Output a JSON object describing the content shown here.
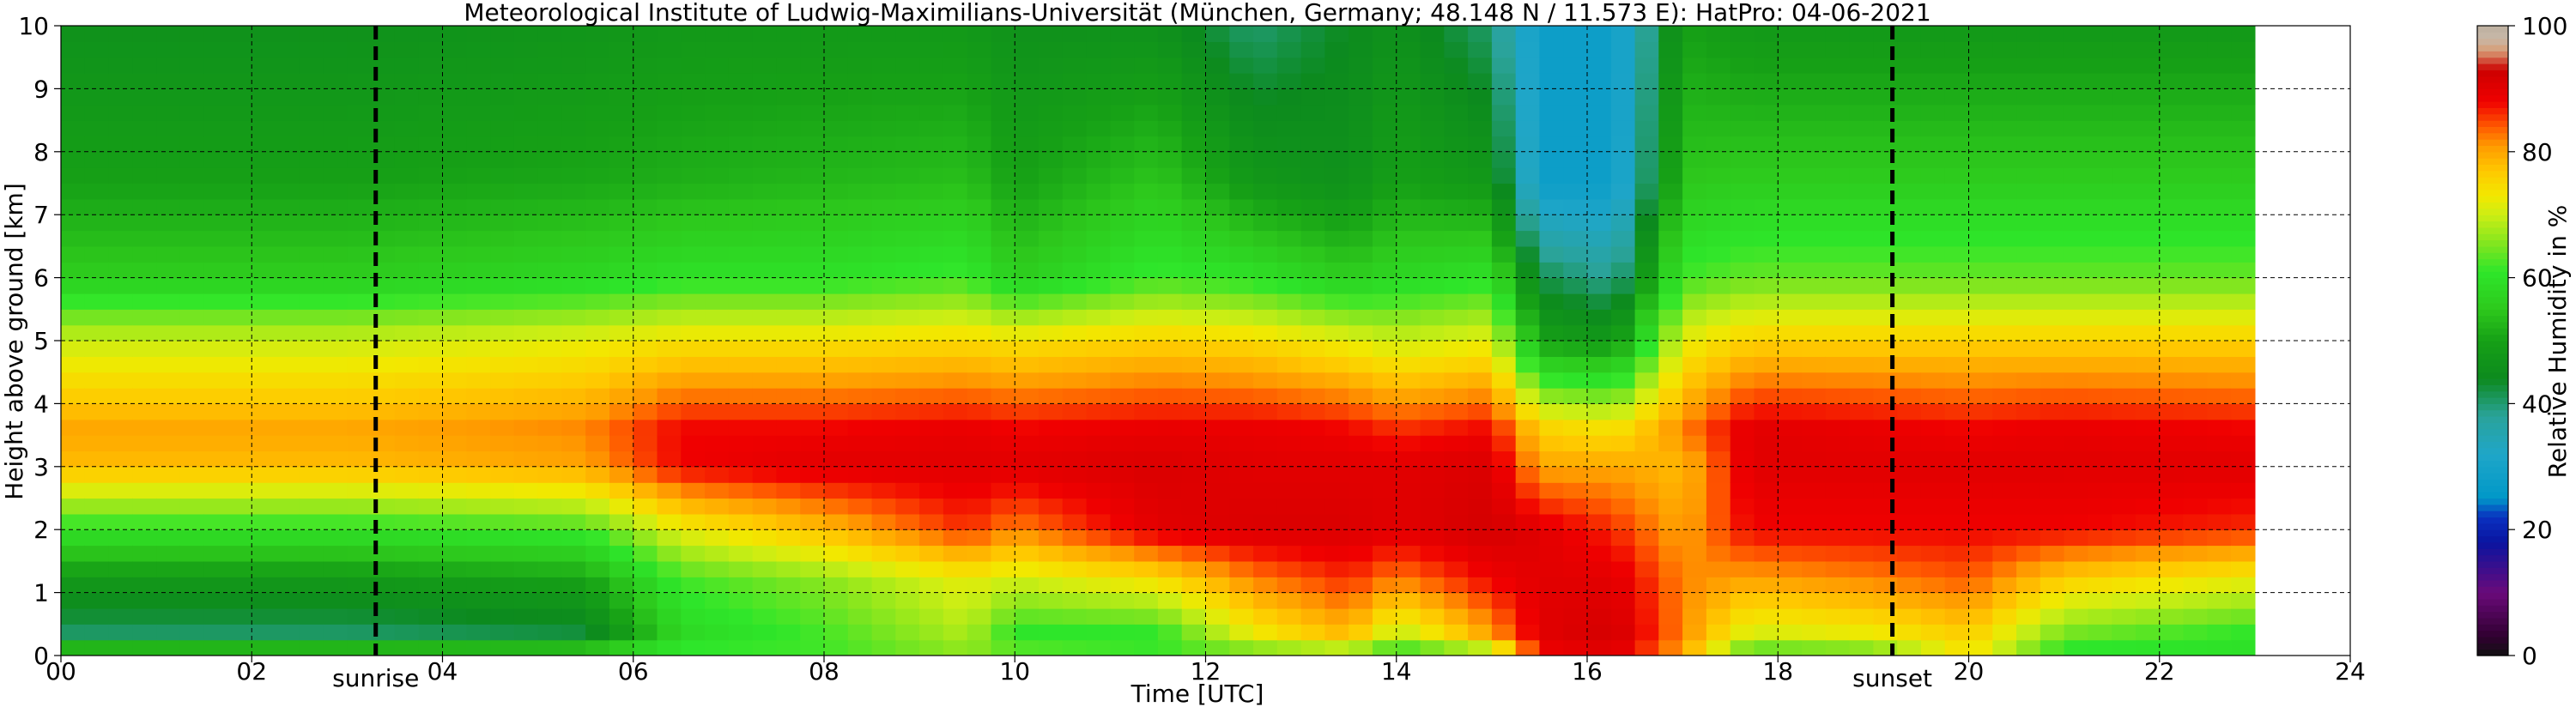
{
  "chart_data": {
    "type": "heatmap",
    "title": "Meteorological Institute of Ludwig-Maximilians-Universität (München, Germany; 48.148 N / 11.573 E):    HatPro: 04-06-2021",
    "xlabel": "Time [UTC]",
    "ylabel": "Height above ground [km]",
    "xlim": [
      0,
      24
    ],
    "ylim": [
      0,
      10
    ],
    "data_end_hour": 23.0,
    "x_ticks": [
      "00",
      "02",
      "04",
      "06",
      "08",
      "10",
      "12",
      "14",
      "16",
      "18",
      "20",
      "22",
      "24"
    ],
    "y_ticks": [
      "0",
      "1",
      "2",
      "3",
      "4",
      "5",
      "6",
      "7",
      "8",
      "9",
      "10"
    ],
    "grid": true,
    "annotations": [
      {
        "label": "sunrise",
        "x": 3.3
      },
      {
        "label": "sunset",
        "x": 19.2
      }
    ],
    "colorbar": {
      "label": "Relative Humidity in %",
      "ticks": [
        "0",
        "20",
        "40",
        "60",
        "80",
        "100"
      ],
      "range": [
        0,
        100
      ],
      "colors": {
        "0": "#111111",
        "3": "#300030",
        "10": "#6a0a7a",
        "18": "#0a14a0",
        "22": "#0a30c0",
        "25": "#0098c8",
        "32": "#1fa6c8",
        "38": "#2aa39a",
        "44": "#0c8a1e",
        "50": "#16a016",
        "55": "#2dc81c",
        "61": "#2ee62a",
        "65": "#7ae520",
        "70": "#ccee14",
        "73": "#f2e800",
        "77": "#ffc800",
        "81": "#ff9a00",
        "84": "#ff5a00",
        "88": "#f00000",
        "93": "#cc0000",
        "96": "#d89c74",
        "98": "#c8b8a8",
        "100": "#bdb0a0"
      }
    },
    "rh_profile_nodes_km": [
      0,
      0.05,
      0.3,
      1.2,
      2.0,
      3.0,
      3.6,
      5.0,
      6.0,
      7.5,
      10
    ],
    "rh_samples": [
      {
        "t": 0.0,
        "rh": [
          76,
          58,
          40,
          48,
          60,
          78,
          80,
          70,
          56,
          50,
          46
        ]
      },
      {
        "t": 3.0,
        "rh": [
          76,
          58,
          40,
          48,
          60,
          78,
          80,
          70,
          56,
          50,
          46
        ]
      },
      {
        "t": 5.5,
        "rh": [
          75,
          58,
          42,
          50,
          62,
          80,
          82,
          72,
          58,
          51,
          47
        ]
      },
      {
        "t": 6.5,
        "rh": [
          70,
          62,
          58,
          62,
          72,
          88,
          88,
          74,
          60,
          52,
          48
        ]
      },
      {
        "t": 8.0,
        "rh": [
          72,
          62,
          62,
          66,
          78,
          90,
          88,
          74,
          60,
          53,
          48
        ]
      },
      {
        "t": 9.5,
        "rh": [
          74,
          66,
          68,
          72,
          86,
          90,
          89,
          75,
          62,
          54,
          48
        ]
      },
      {
        "t": 10.0,
        "rh": [
          72,
          64,
          60,
          70,
          82,
          90,
          88,
          74,
          56,
          50,
          46
        ]
      },
      {
        "t": 11.5,
        "rh": [
          72,
          62,
          60,
          74,
          90,
          91,
          89,
          76,
          62,
          55,
          46
        ]
      },
      {
        "t": 12.5,
        "rh": [
          74,
          64,
          72,
          82,
          91,
          90,
          89,
          75,
          60,
          48,
          40
        ]
      },
      {
        "t": 13.5,
        "rh": [
          72,
          66,
          78,
          86,
          91,
          90,
          88,
          72,
          56,
          46,
          44
        ]
      },
      {
        "t": 14.0,
        "rh": [
          70,
          60,
          68,
          82,
          90,
          90,
          86,
          70,
          58,
          50,
          46
        ]
      },
      {
        "t": 15.0,
        "rh": [
          74,
          66,
          80,
          88,
          92,
          91,
          88,
          72,
          60,
          48,
          40
        ]
      },
      {
        "t": 15.5,
        "rh": [
          82,
          88,
          90,
          90,
          90,
          80,
          76,
          50,
          42,
          28,
          28
        ]
      },
      {
        "t": 16.3,
        "rh": [
          82,
          90,
          92,
          90,
          86,
          80,
          74,
          48,
          38,
          28,
          28
        ]
      },
      {
        "t": 17.0,
        "rh": [
          74,
          80,
          82,
          82,
          80,
          78,
          82,
          72,
          62,
          55,
          50
        ]
      },
      {
        "t": 17.7,
        "rh": [
          74,
          62,
          70,
          80,
          88,
          90,
          90,
          76,
          64,
          56,
          48
        ]
      },
      {
        "t": 19.0,
        "rh": [
          74,
          64,
          72,
          82,
          88,
          90,
          89,
          76,
          64,
          56,
          48
        ]
      },
      {
        "t": 20.0,
        "rh": [
          80,
          74,
          76,
          84,
          88,
          90,
          88,
          76,
          64,
          56,
          48
        ]
      },
      {
        "t": 21.0,
        "rh": [
          74,
          60,
          64,
          76,
          88,
          90,
          89,
          76,
          64,
          56,
          48
        ]
      },
      {
        "t": 23.0,
        "rh": [
          72,
          60,
          60,
          72,
          86,
          90,
          88,
          76,
          64,
          56,
          48
        ]
      }
    ]
  }
}
